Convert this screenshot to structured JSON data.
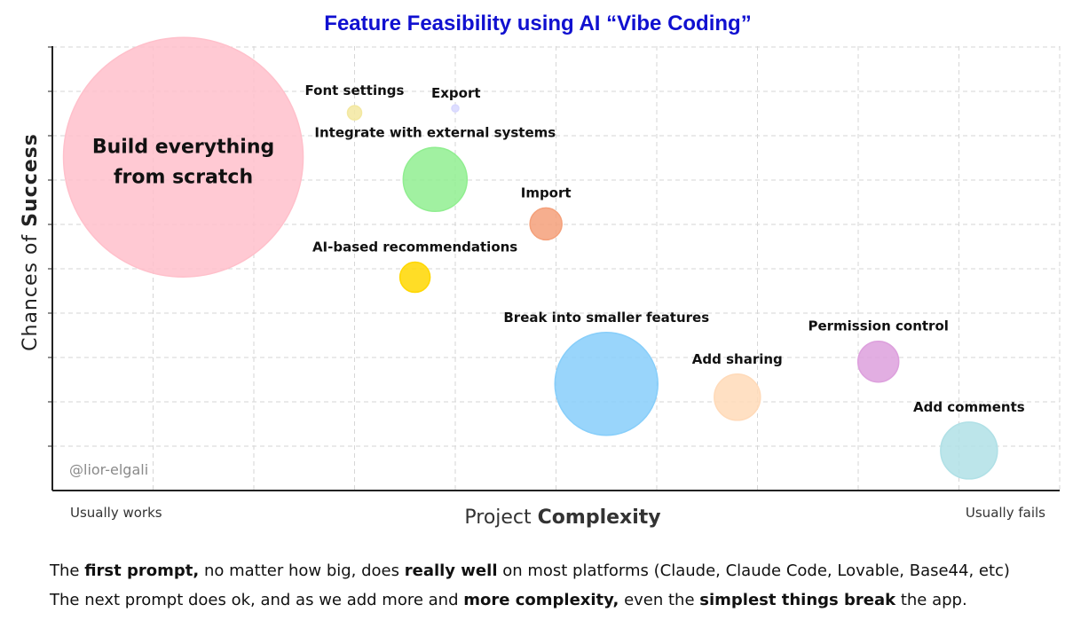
{
  "chart_data": {
    "type": "bubble",
    "title": "Feature Feasibility using AI “Vibe Coding”",
    "title_color": "#1010d0",
    "xlabel_parts": [
      {
        "text": "Project ",
        "bold": false
      },
      {
        "text": "Complexity",
        "bold": true
      }
    ],
    "ylabel_parts": [
      {
        "text": "Chances of ",
        "bold": false
      },
      {
        "text": "Success",
        "bold": true
      }
    ],
    "x_left_label": "Usually works",
    "x_right_label": "Usually fails",
    "xlim": [
      0,
      10
    ],
    "ylim": [
      0,
      10
    ],
    "grid": true,
    "watermark": "@lior-elgali",
    "points": [
      {
        "label": "Build everything from scratch",
        "label_lines": [
          "Build everything",
          "from scratch"
        ],
        "x": 1.3,
        "y": 7.5,
        "size": 135,
        "color": "#ffc0cb",
        "label_pos": "center"
      },
      {
        "label": "Font settings",
        "x": 3.0,
        "y": 8.5,
        "size": 8,
        "color": "#f3e8a0",
        "label_pos": "above"
      },
      {
        "label": "Export",
        "x": 4.0,
        "y": 8.6,
        "size": 4,
        "color": "#d8d8ff",
        "label_pos": "above-right"
      },
      {
        "label": "Integrate with external systems",
        "x": 3.8,
        "y": 7.0,
        "size": 36,
        "color": "#90ee90",
        "label_pos": "above"
      },
      {
        "label": "Import",
        "x": 4.9,
        "y": 6.0,
        "size": 18,
        "color": "#f4a07a",
        "label_pos": "above"
      },
      {
        "label": "AI-based recommendations",
        "x": 3.6,
        "y": 4.8,
        "size": 17,
        "color": "#ffd700",
        "label_pos": "above"
      },
      {
        "label": "Break into smaller features",
        "x": 5.5,
        "y": 2.4,
        "size": 58,
        "color": "#87cefa",
        "label_pos": "above"
      },
      {
        "label": "Add sharing",
        "x": 6.8,
        "y": 2.1,
        "size": 26,
        "color": "#ffdab9",
        "label_pos": "above"
      },
      {
        "label": "Permission control",
        "x": 8.2,
        "y": 2.9,
        "size": 23,
        "color": "#dda0dd",
        "label_pos": "above"
      },
      {
        "label": "Add comments",
        "x": 9.1,
        "y": 0.9,
        "size": 32,
        "color": "#b0e0e6",
        "label_pos": "above"
      }
    ]
  },
  "footer": {
    "line1": [
      {
        "text": "The ",
        "bold": false
      },
      {
        "text": "first prompt,",
        "bold": true
      },
      {
        "text": " no matter how big, does ",
        "bold": false
      },
      {
        "text": "really well",
        "bold": true
      },
      {
        "text": " on most platforms (Claude, Claude Code, Lovable, Base44, etc)",
        "bold": false
      }
    ],
    "line2": [
      {
        "text": "The next prompt does ok, and as we add more and ",
        "bold": false
      },
      {
        "text": "more complexity,",
        "bold": true
      },
      {
        "text": " even the ",
        "bold": false
      },
      {
        "text": "simplest things break",
        "bold": true
      },
      {
        "text": " the app.",
        "bold": false
      }
    ]
  }
}
